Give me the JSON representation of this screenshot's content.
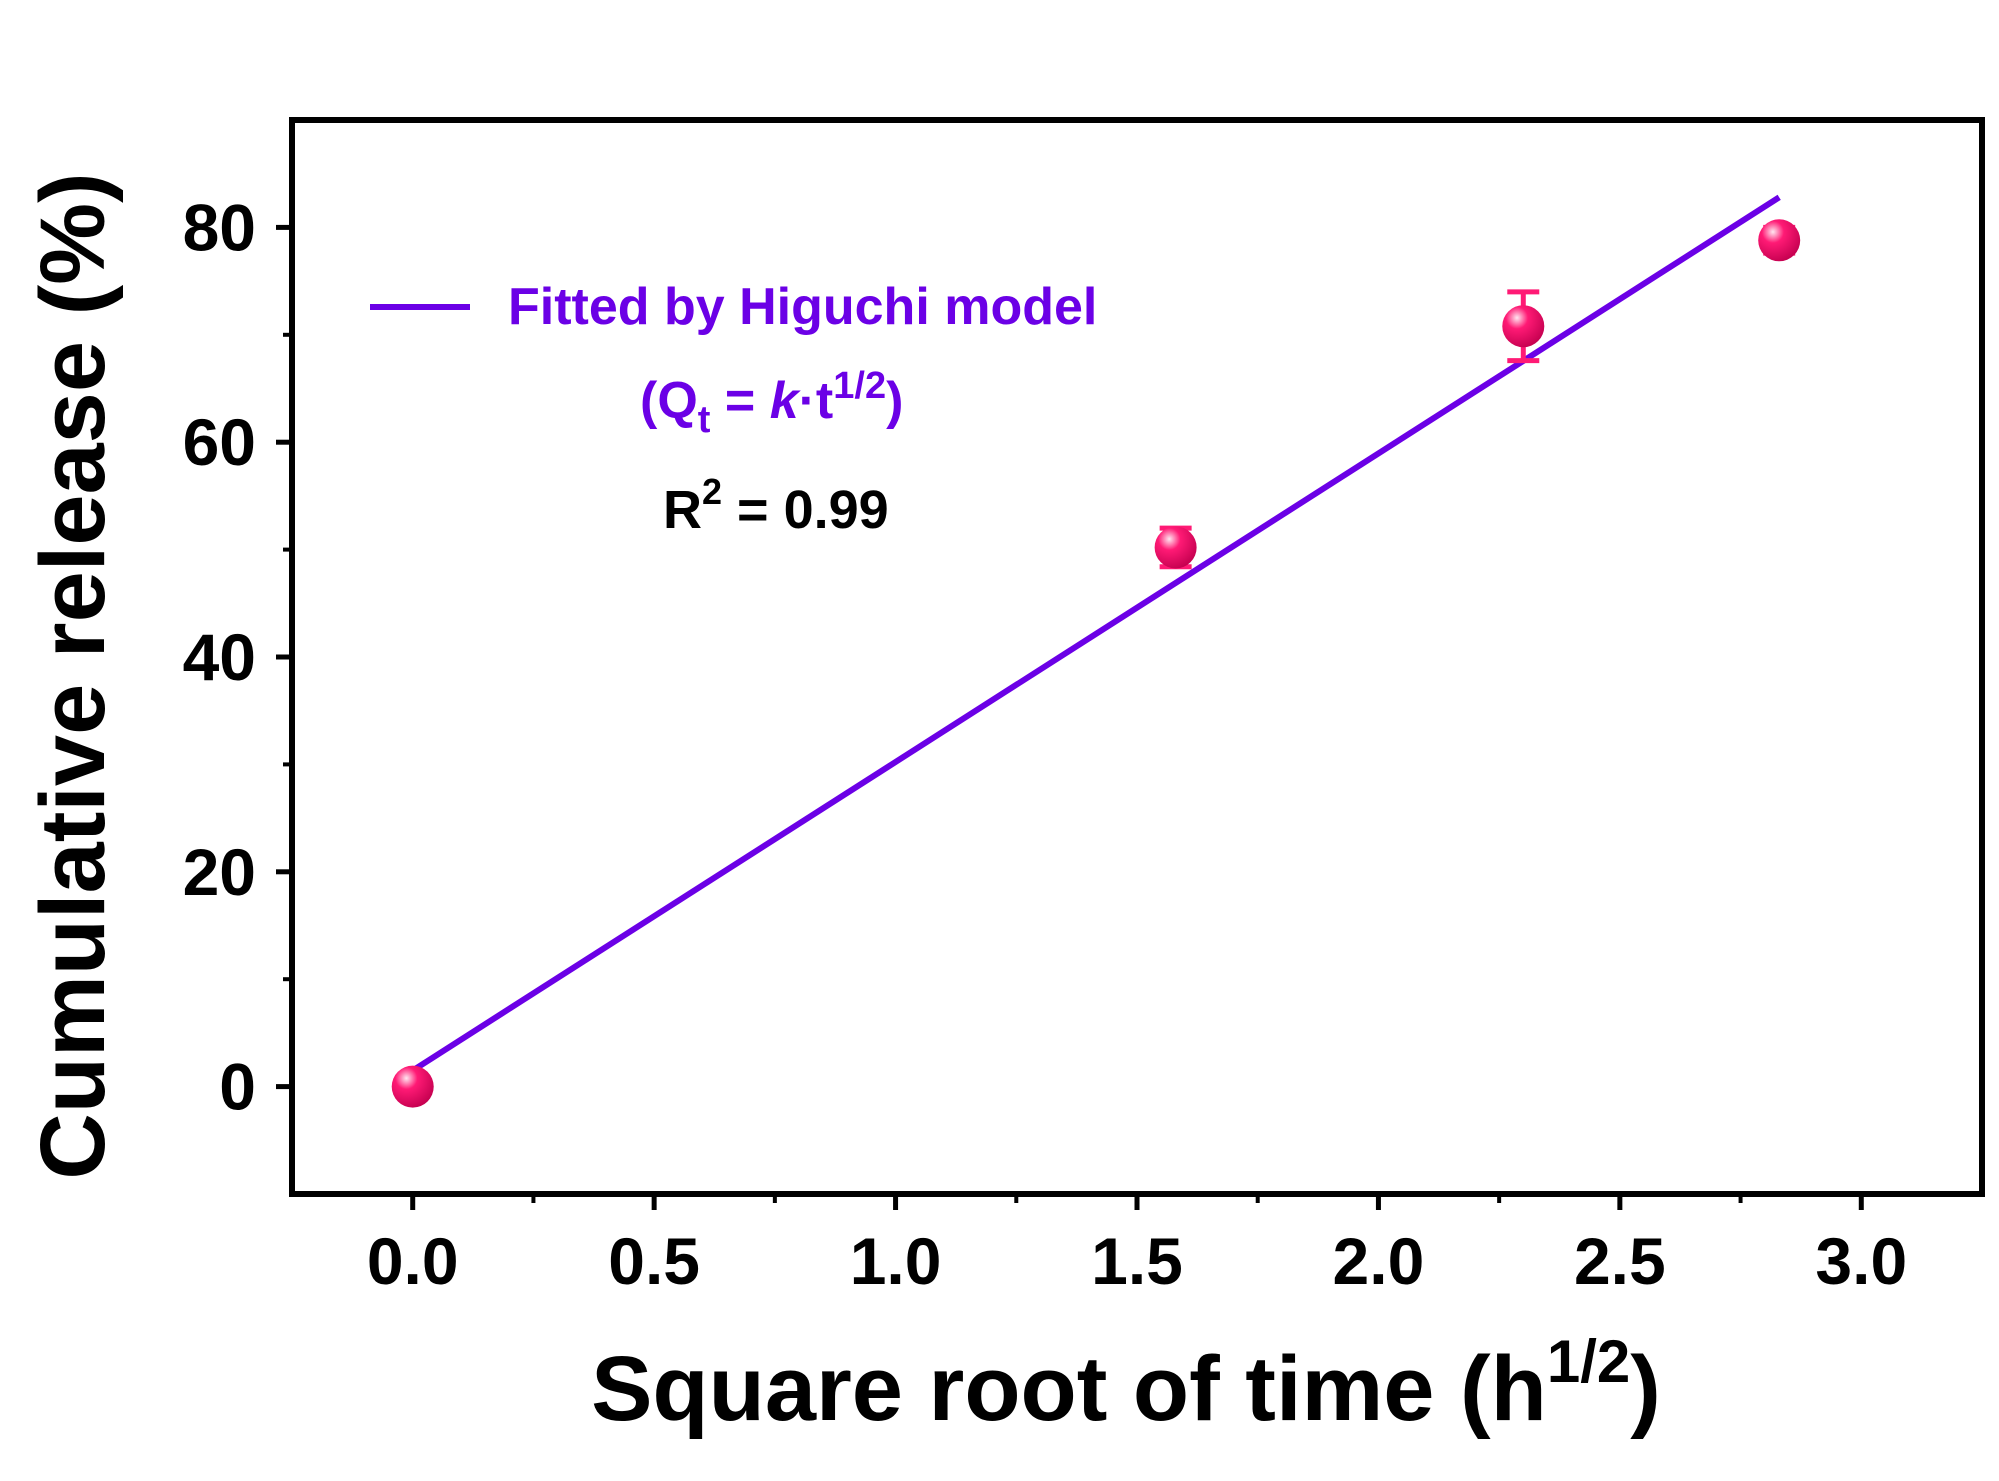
{
  "chart_data": {
    "type": "scatter",
    "xlabel": "Square root of time (h",
    "xlabel_sup": "1/2",
    "xlabel_close": ")",
    "ylabel": "Cumulative release (%)",
    "xlim": [
      -0.25,
      3.25
    ],
    "ylim": [
      -10,
      90
    ],
    "xticks": [
      0.0,
      0.5,
      1.0,
      1.5,
      2.0,
      2.5,
      3.0
    ],
    "xtick_labels": [
      "0.0",
      "0.5",
      "1.0",
      "1.5",
      "2.0",
      "2.5",
      "3.0"
    ],
    "yticks": [
      0,
      20,
      40,
      60,
      80
    ],
    "ytick_labels": [
      "0",
      "20",
      "40",
      "60",
      "80"
    ],
    "grid": false,
    "legend_position": "top-left",
    "series": [
      {
        "kind": "points",
        "x": [
          0.0,
          1.58,
          2.3,
          2.83
        ],
        "y": [
          0.0,
          50.2,
          70.8,
          78.8
        ],
        "error": [
          0.5,
          1.8,
          3.2,
          1.2
        ],
        "color": "#ff1a75"
      },
      {
        "kind": "fit-line",
        "name": "Fitted by Higuchi model",
        "x": [
          0.0,
          2.83
        ],
        "y": [
          1.5,
          82.8
        ],
        "color": "#6b00e6"
      }
    ],
    "annotations": {
      "equation_open": "(Q",
      "equation_sub": "t",
      "equation_mid": " = ",
      "equation_k": "k",
      "equation_rest": "·t",
      "equation_sup": "1/2",
      "equation_close": ")",
      "r2_prefix": "R",
      "r2_sup": "2",
      "r2_rest": " = 0.99"
    },
    "colors": {
      "axis": "#000000",
      "fit": "#6b00e6",
      "points": "#ff1a75"
    }
  }
}
